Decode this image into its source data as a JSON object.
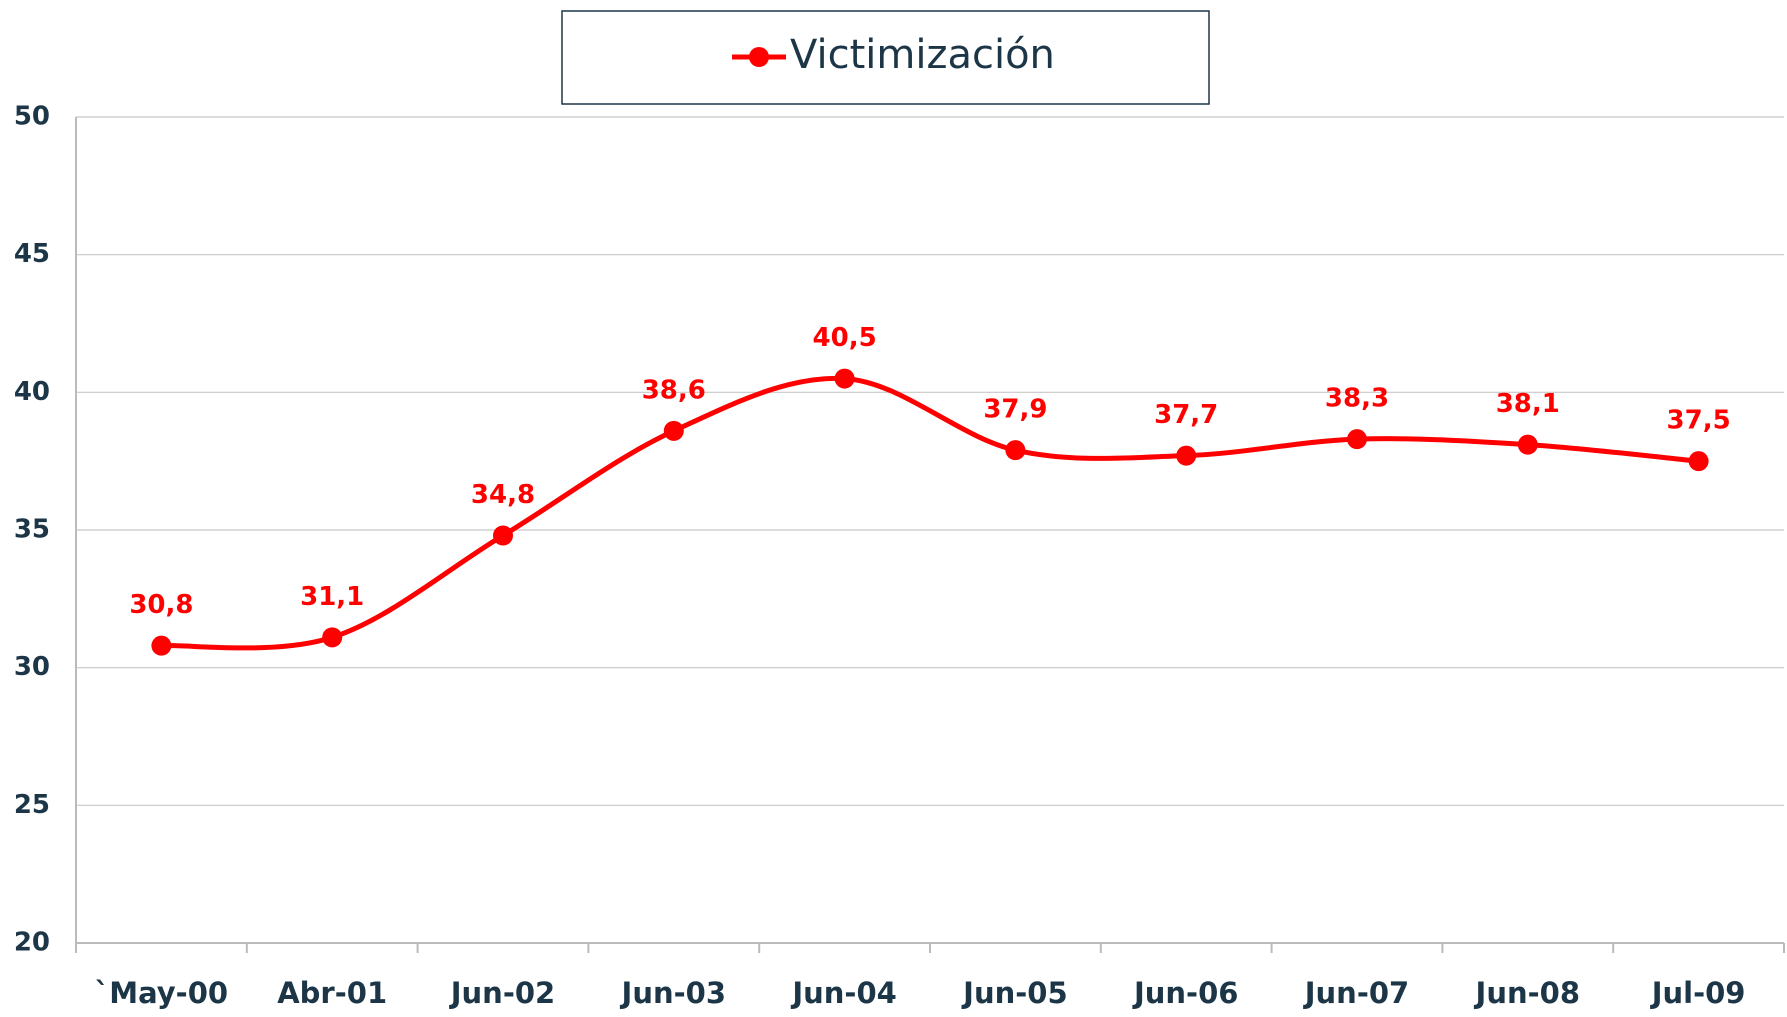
{
  "chart_data": {
    "type": "line",
    "categories": [
      "`May-00",
      "Abr-01",
      "Jun-02",
      "Jun-03",
      "Jun-04",
      "Jun-05",
      "Jun-06",
      "Jun-07",
      "Jun-08",
      "Jul-09"
    ],
    "series": [
      {
        "name": "Victimización",
        "color": "#ff0000",
        "values": [
          30.8,
          31.1,
          34.8,
          38.6,
          40.5,
          37.9,
          37.7,
          38.3,
          38.1,
          37.5
        ],
        "value_labels": [
          "30,8",
          "31,1",
          "34,8",
          "38,6",
          "40,5",
          "37,9",
          "37,7",
          "38,3",
          "38,1",
          "37,5"
        ]
      }
    ],
    "ylim": [
      20,
      50
    ],
    "yticks": [
      20,
      25,
      30,
      35,
      40,
      45,
      50
    ],
    "grid": true,
    "legend": "top",
    "smooth": true
  }
}
